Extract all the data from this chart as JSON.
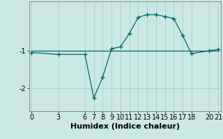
{
  "xlabel": "Humidex (Indice chaleur)",
  "ylabel": "",
  "background_color": "#cce8e4",
  "grid_color": "#aad4cf",
  "line_color": "#006868",
  "x_ticks": [
    0,
    3,
    6,
    7,
    8,
    9,
    10,
    11,
    12,
    13,
    14,
    15,
    16,
    17,
    18,
    20,
    21
  ],
  "line1_x": [
    0,
    3,
    6,
    7,
    8,
    9,
    10,
    11,
    12,
    13,
    14,
    15,
    16,
    17,
    18,
    20,
    21
  ],
  "line1_y": [
    -1.05,
    -1.1,
    -1.1,
    -2.25,
    -1.7,
    -0.95,
    -0.9,
    -0.55,
    -0.12,
    -0.05,
    -0.05,
    -0.1,
    -0.15,
    -0.6,
    -1.08,
    -1.0,
    -0.97
  ],
  "line2_x": [
    0,
    21
  ],
  "line2_y": [
    -1.0,
    -1.0
  ],
  "ylim": [
    -2.6,
    0.3
  ],
  "xlim": [
    -0.3,
    21.3
  ],
  "yticks": [
    -2,
    -1
  ],
  "ytick_labels": [
    "-2",
    "-1"
  ],
  "xlabel_fontsize": 8,
  "tick_fontsize": 7
}
